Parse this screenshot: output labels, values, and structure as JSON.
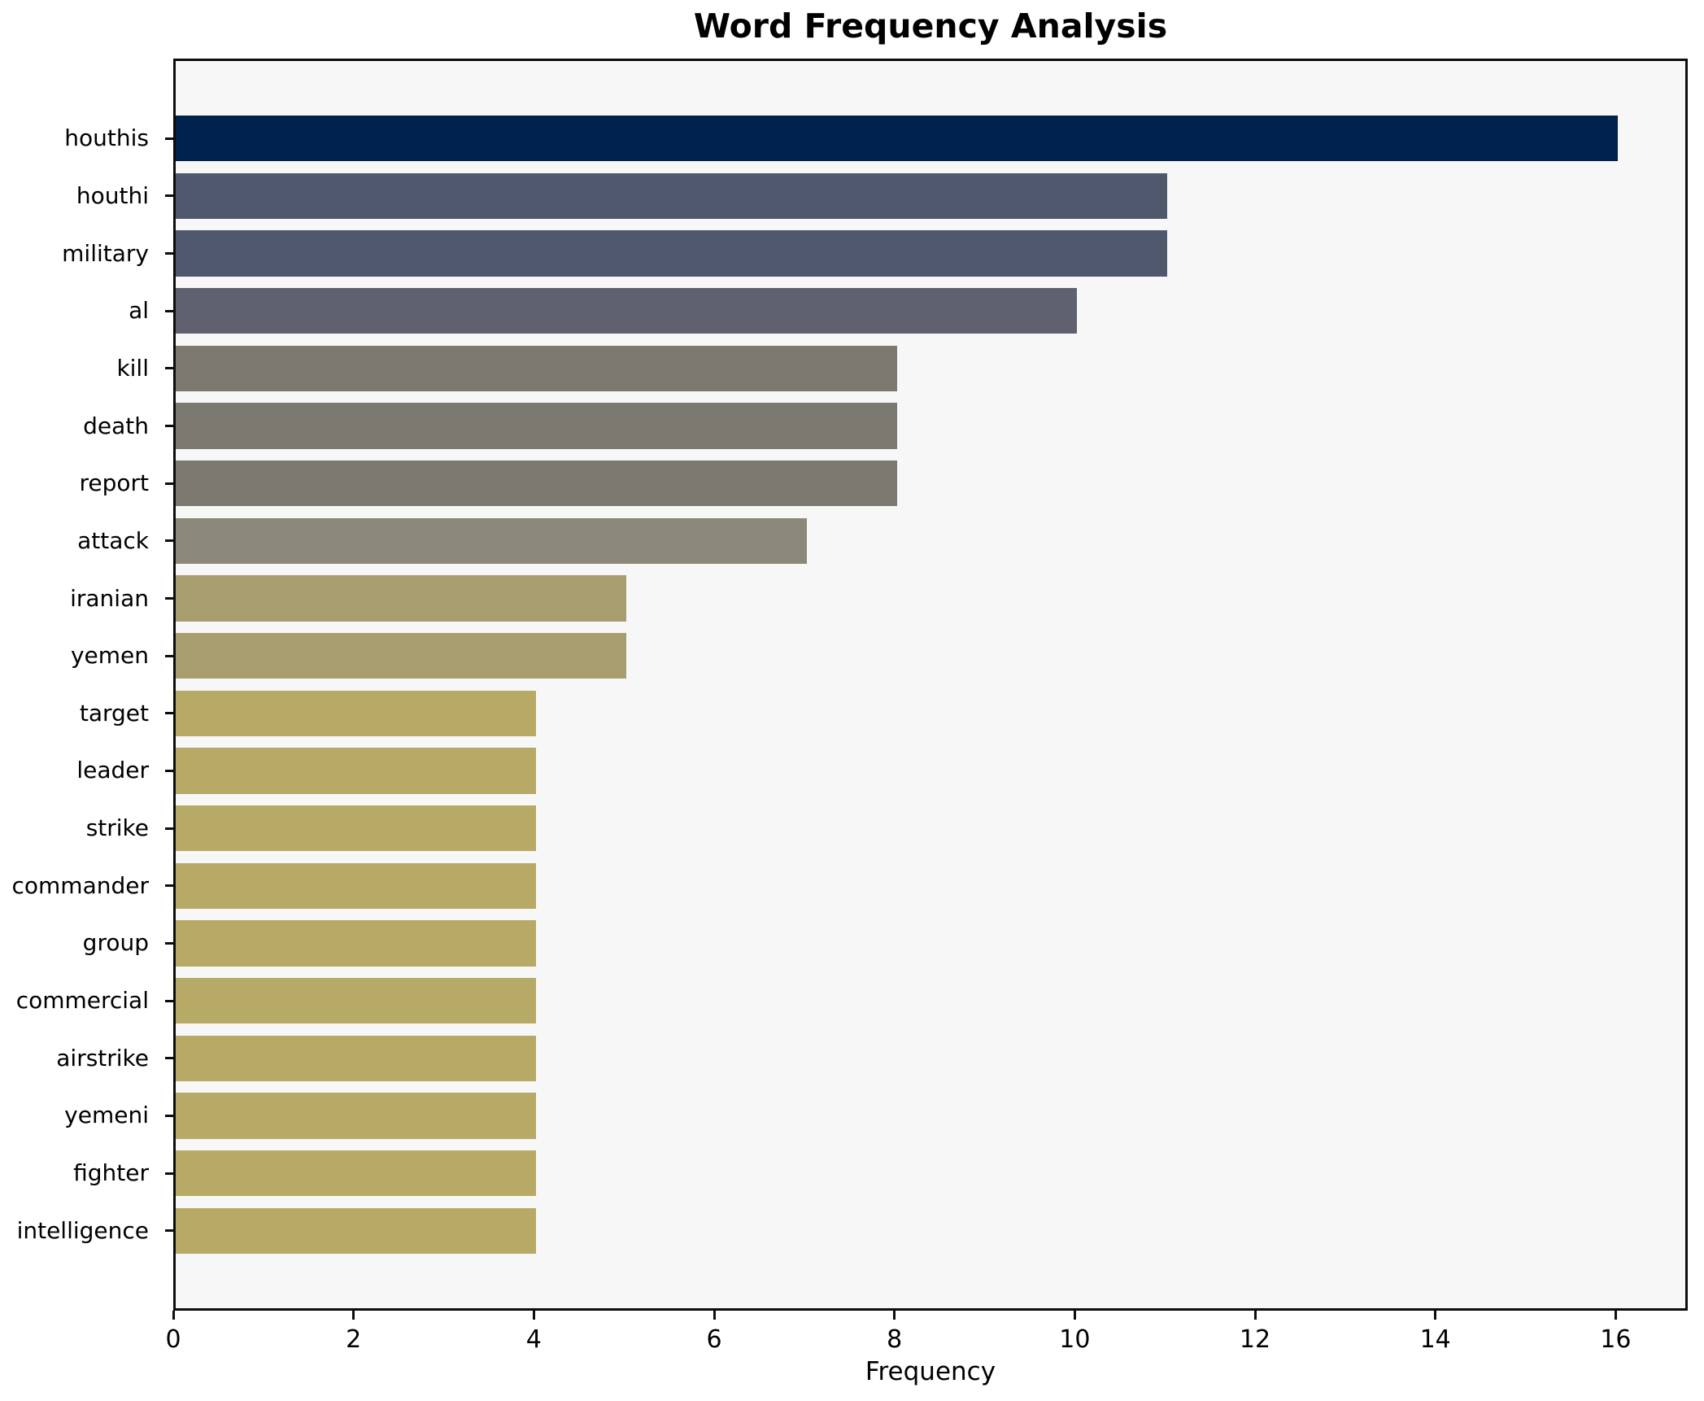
{
  "title": "Word Frequency Analysis",
  "xlabel": "Frequency",
  "chart_data": {
    "type": "bar",
    "orientation": "horizontal",
    "title": "Word Frequency Analysis",
    "xlabel": "Frequency",
    "ylabel": "",
    "categories": [
      "houthis",
      "houthi",
      "military",
      "al",
      "kill",
      "death",
      "report",
      "attack",
      "iranian",
      "yemen",
      "target",
      "leader",
      "strike",
      "commander",
      "group",
      "commercial",
      "airstrike",
      "yemeni",
      "fighter",
      "intelligence"
    ],
    "values": [
      16,
      11,
      11,
      10,
      8,
      8,
      8,
      7,
      5,
      5,
      4,
      4,
      4,
      4,
      4,
      4,
      4,
      4,
      4,
      4
    ],
    "bar_colors": [
      "#00224e",
      "#50586e",
      "#50586e",
      "#5f626e",
      "#7b796f",
      "#7b796f",
      "#7b796f",
      "#8b8779",
      "#a79d6e",
      "#a79d6e",
      "#b7aa66",
      "#b7aa66",
      "#b7aa66",
      "#b7aa66",
      "#b7aa66",
      "#b7aa66",
      "#b7aa66",
      "#b7aa66",
      "#b7aa66",
      "#b7aa66"
    ],
    "x_ticks": [
      0,
      2,
      4,
      6,
      8,
      10,
      12,
      14,
      16
    ],
    "xlim": [
      0,
      16.8
    ],
    "bar_height_fraction": 0.8,
    "grid": false,
    "legend": null,
    "plot_background": "#f7f7f7",
    "figure_background": "#ffffff",
    "spine_color": "#0d0d0d",
    "colormap": "cividis_reversed"
  }
}
